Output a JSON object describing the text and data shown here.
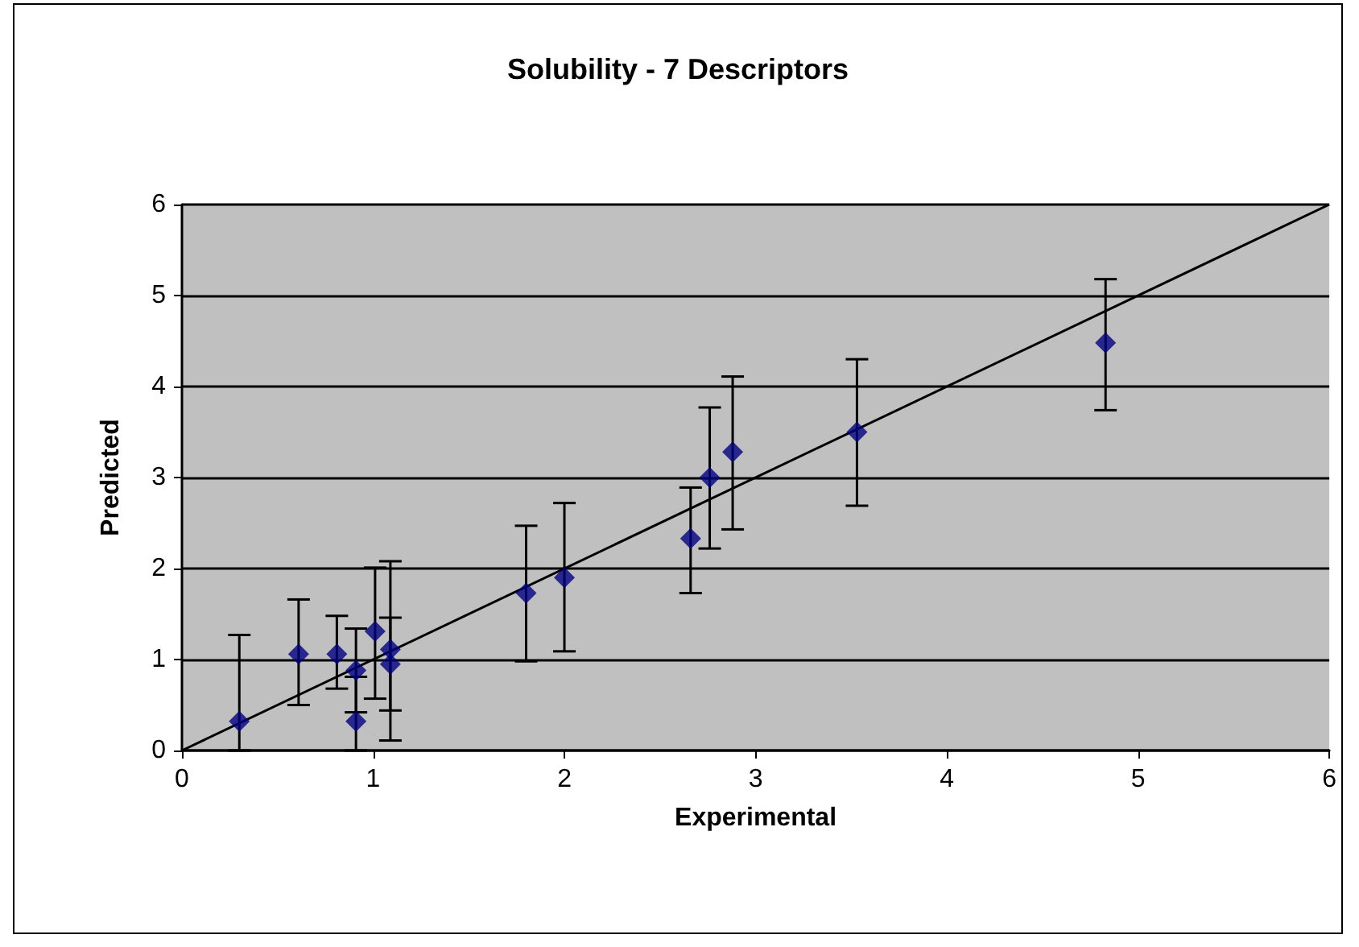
{
  "chart_data": {
    "type": "scatter",
    "title": "Solubility - 7 Descriptors",
    "xlabel": "Experimental",
    "ylabel": "Predicted",
    "xlim": [
      0,
      6
    ],
    "xticks": [
      0,
      1,
      2,
      3,
      4,
      5,
      6
    ],
    "ylim": [
      0,
      6
    ],
    "yticks": [
      0,
      1,
      2,
      3,
      4,
      5,
      6
    ],
    "grid": "y",
    "marker": "diamond",
    "series": [
      {
        "type": "scatter",
        "color": "#000080",
        "x": [
          0.3,
          0.61,
          0.81,
          0.91,
          0.91,
          1.01,
          1.09,
          1.09,
          1.8,
          2.0,
          2.66,
          2.76,
          2.88,
          3.53,
          4.83
        ],
        "values": [
          0.32,
          1.06,
          1.06,
          0.88,
          0.32,
          1.31,
          1.11,
          0.95,
          1.73,
          1.9,
          2.33,
          3.0,
          3.28,
          3.5,
          4.48
        ],
        "errors": [
          [
            0,
            1.27
          ],
          [
            0.5,
            1.66
          ],
          [
            0.68,
            1.48
          ],
          [
            0.42,
            1.34
          ],
          [
            0,
            0.81
          ],
          [
            0.57,
            2.01
          ],
          [
            0.11,
            2.08
          ],
          [
            0.44,
            1.46
          ],
          [
            0.98,
            2.47
          ],
          [
            1.09,
            2.72
          ],
          [
            1.73,
            2.89
          ],
          [
            2.22,
            3.77
          ],
          [
            2.43,
            4.11
          ],
          [
            2.69,
            4.3
          ],
          [
            3.74,
            5.18
          ]
        ]
      },
      {
        "type": "line",
        "color": "#000000",
        "x": [
          0,
          6
        ],
        "values": [
          0,
          6
        ],
        "marker": "none",
        "line_style": "solid"
      }
    ]
  }
}
